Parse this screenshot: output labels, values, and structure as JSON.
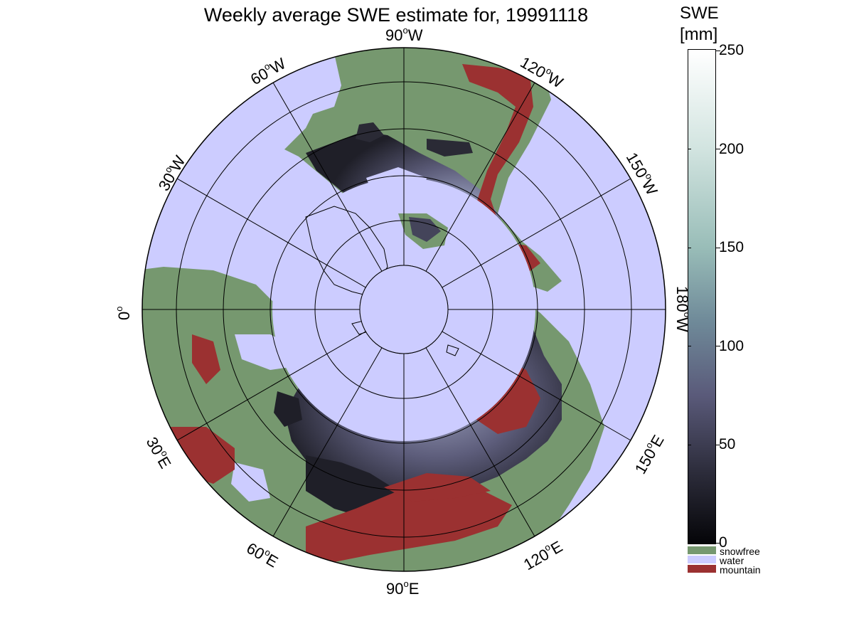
{
  "title": "Weekly average SWE estimate for, 19991118",
  "colorbar": {
    "title_line1": "SWE",
    "title_line2": "[mm]",
    "range": [
      0,
      250
    ],
    "ticks": [
      "250",
      "200",
      "150",
      "100",
      "50",
      "0"
    ]
  },
  "legend": [
    {
      "label": "snowfree",
      "color": "#76986f"
    },
    {
      "label": "water",
      "color": "#ccccff"
    },
    {
      "label": "mountain",
      "color": "#9b3131"
    }
  ],
  "map": {
    "projection": "polar-stereographic-north",
    "longitude_labels": [
      {
        "deg": "90",
        "hemi": "W"
      },
      {
        "deg": "60",
        "hemi": "W"
      },
      {
        "deg": "120",
        "hemi": "W"
      },
      {
        "deg": "30",
        "hemi": "W"
      },
      {
        "deg": "150",
        "hemi": "W"
      },
      {
        "deg": "0",
        "hemi": ""
      },
      {
        "deg": "180",
        "hemi": "W"
      },
      {
        "deg": "30",
        "hemi": "E"
      },
      {
        "deg": "150",
        "hemi": "E"
      },
      {
        "deg": "60",
        "hemi": "E"
      },
      {
        "deg": "120",
        "hemi": "E"
      },
      {
        "deg": "90",
        "hemi": "E"
      }
    ],
    "colors": {
      "water": "#ccccff",
      "snowfree": "#76986f",
      "mountain": "#9b3131",
      "snow_dark": "#1a1a22",
      "snow_mid": "#5a5a78",
      "snow_light": "#a4a8c4"
    }
  }
}
